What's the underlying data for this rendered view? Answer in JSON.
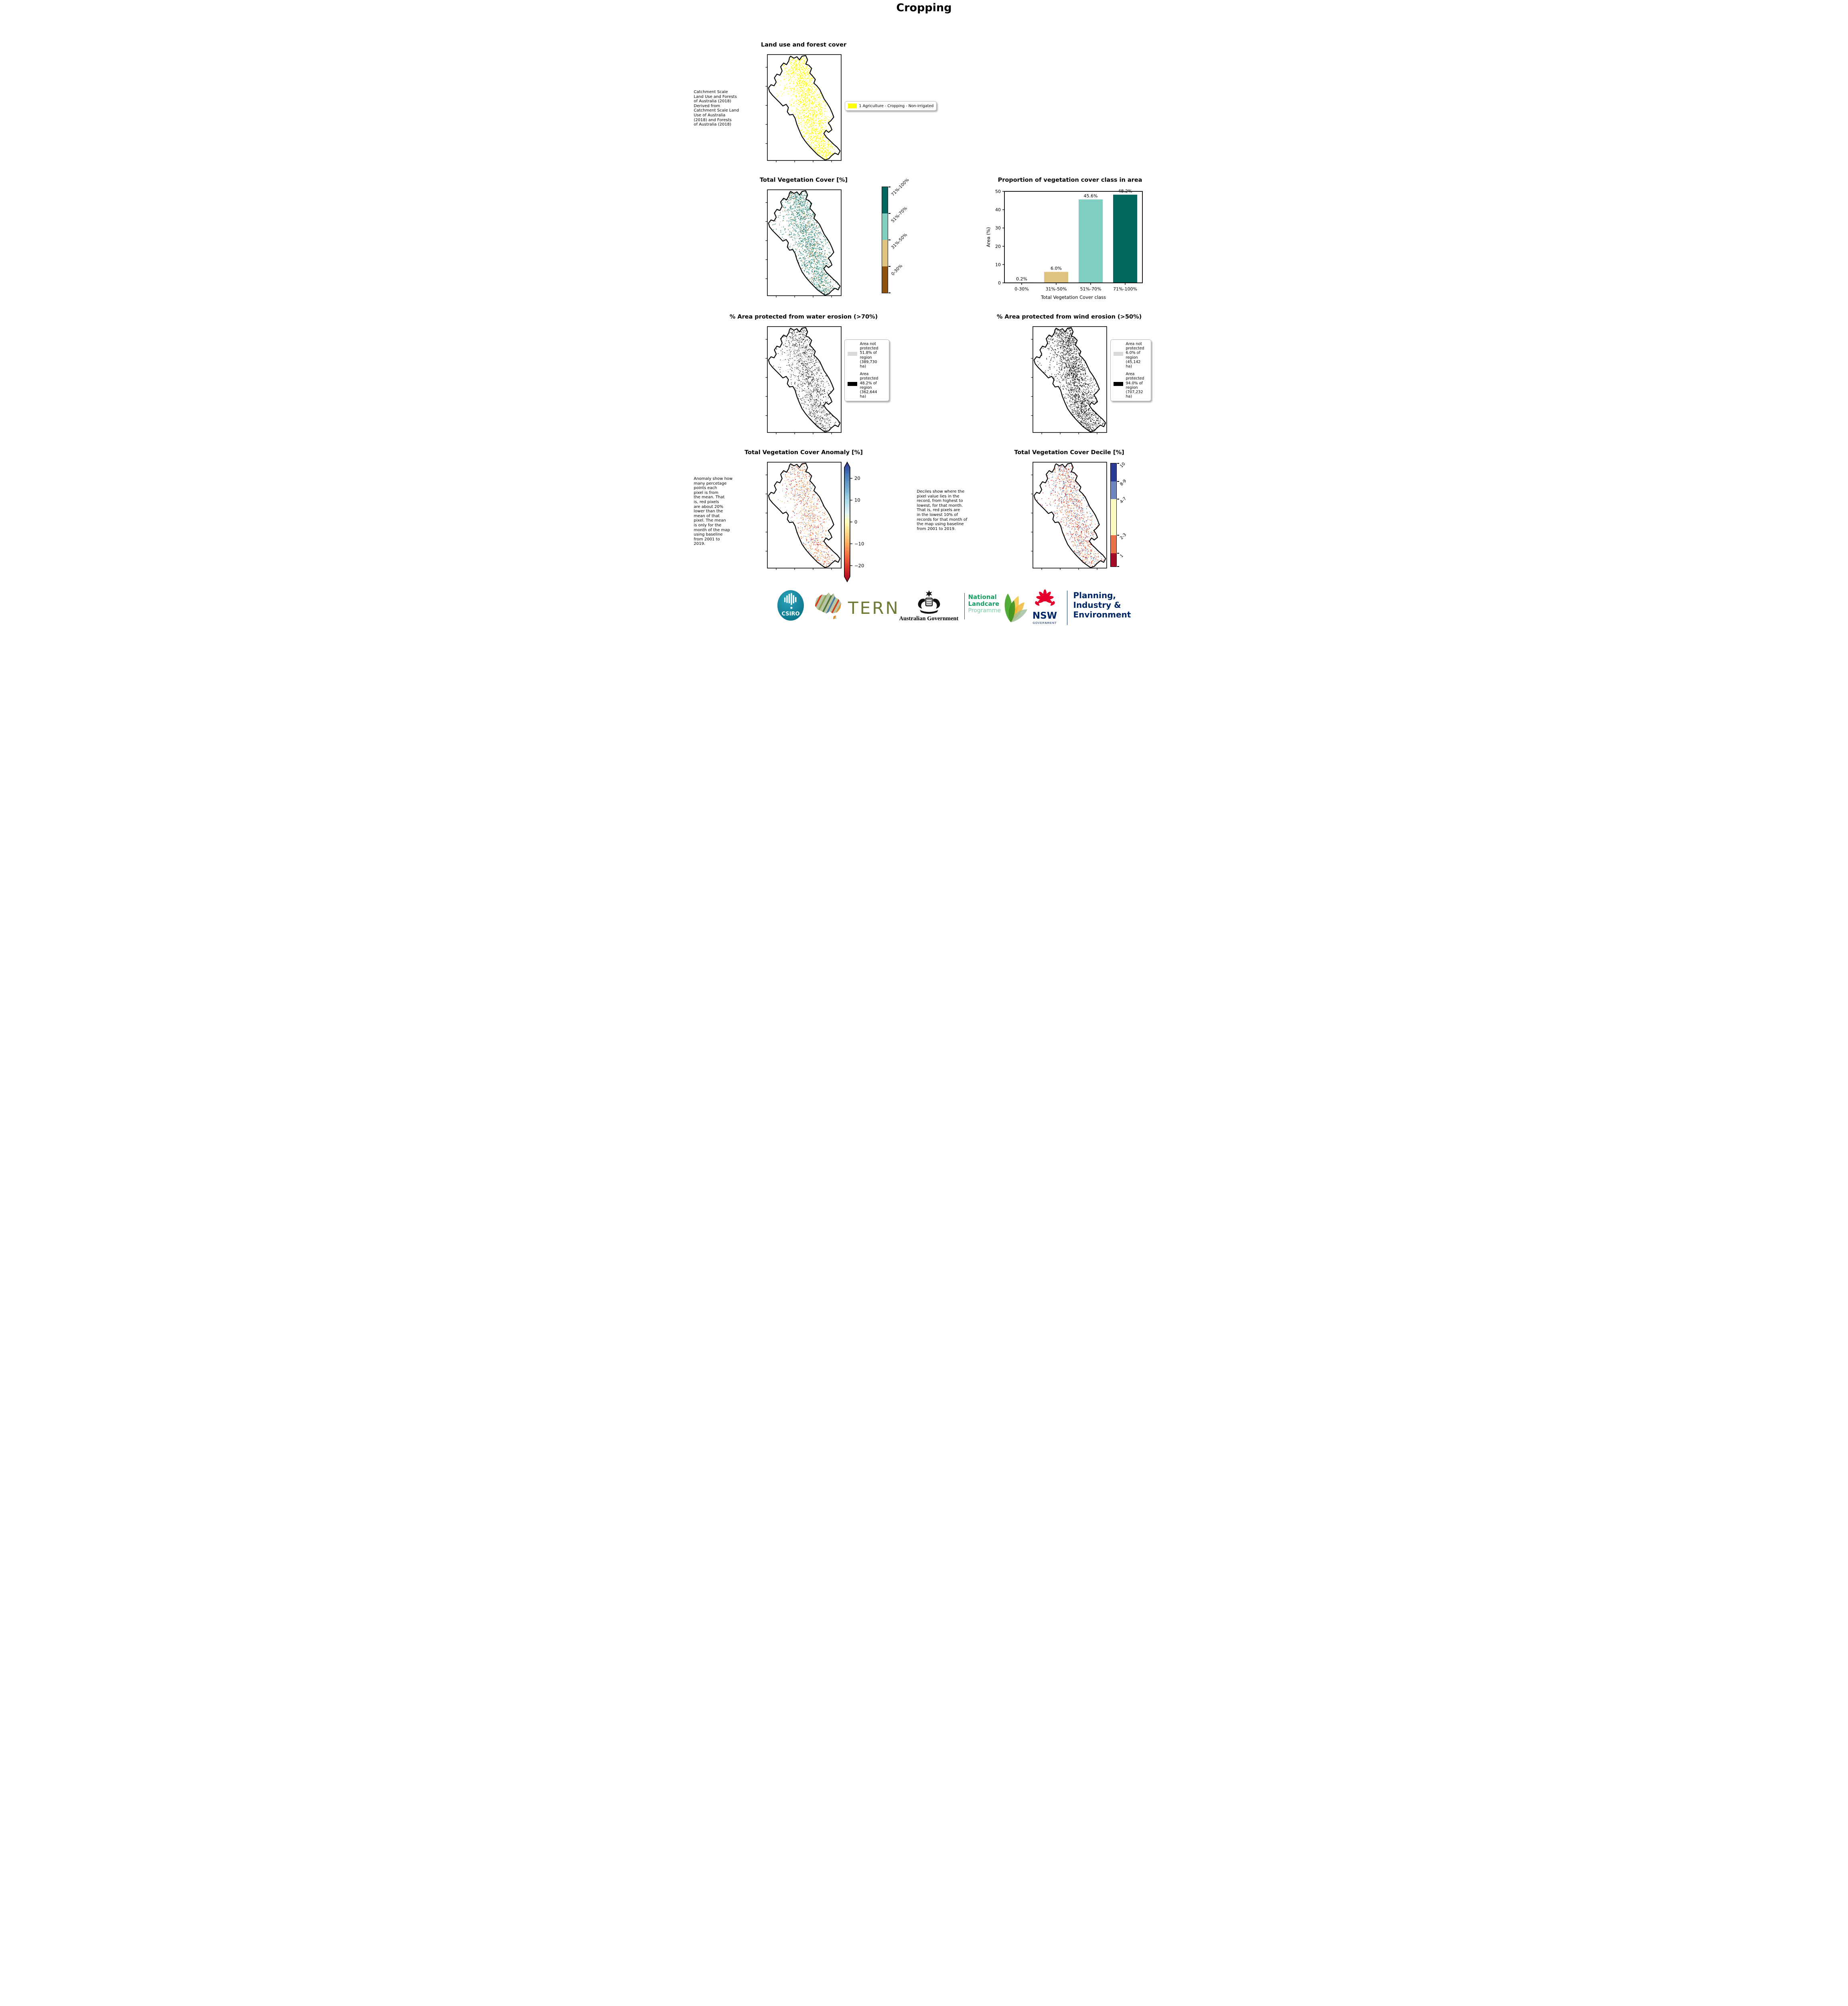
{
  "page_title": "Cropping",
  "landuse": {
    "title": "Land use and forest cover",
    "note": " Catchment Scale\nLand Use and Forests\nof Australia (2018)\nDerived from\nCatchment Scale Land\nUse of Australia\n(2018) and Forests\nof Australia (2018)",
    "legend_label": "1 Agriculture - Cropping - Non-irrigated",
    "legend_color": "#ffff00"
  },
  "tvc": {
    "title": "Total Vegetation Cover [%]",
    "colorbar": [
      {
        "label": "71%-100%",
        "color": "#01665e"
      },
      {
        "label": "51%-70%",
        "color": "#80cdc1"
      },
      {
        "label": "31%-50%",
        "color": "#dfc27d"
      },
      {
        "label": "0-30%",
        "color": "#8c510a"
      }
    ]
  },
  "chart_data": {
    "type": "bar",
    "title": "Proportion of vegetation cover class in area",
    "categories": [
      "0-30%",
      "31%-50%",
      "51%-70%",
      "71%-100%"
    ],
    "values": [
      0.2,
      6.0,
      45.6,
      48.2
    ],
    "value_labels": [
      "0.2%",
      "6.0%",
      "45.6%",
      "48.2%"
    ],
    "bar_colors": [
      "#8c510a",
      "#dfc27d",
      "#80cdc1",
      "#01665e"
    ],
    "xlabel": "Total Vegetation Cover class",
    "ylabel": "Area (%)",
    "ylim": [
      0,
      50
    ],
    "yticks": [
      0,
      10,
      20,
      30,
      40,
      50
    ],
    "legend_position": "none",
    "grid": false
  },
  "water_erosion": {
    "title": "% Area protected from water erosion (>70%)",
    "legend": [
      {
        "swatch": "#d9d9d9",
        "text": "Area not\nprotected\n51.8% of\nregion\n(389,730\nha)"
      },
      {
        "swatch": "#000000",
        "text": "Area\nprotected\n48.2% of\nregion\n(362,644\nha)"
      }
    ]
  },
  "wind_erosion": {
    "title": "% Area protected from wind erosion (>50%)",
    "legend": [
      {
        "swatch": "#d9d9d9",
        "text": "Area not\nprotected\n6.0% of\nregion\n(45,142\nha)"
      },
      {
        "swatch": "#000000",
        "text": "Area\nprotected\n94.0% of\nregion\n(707,232\nha)"
      }
    ]
  },
  "anomaly": {
    "title": "Total Vegetation Cover Anomaly [%]",
    "note": "Anomaly show how\nmany percetage\npoints each\npixel is from\nthe mean. That\nis, red pixels\nare about 20%\nlower than the\nmean of that\npixel. The mean\nis only for the\nmonth of the map\nusing baseline\nfrom 2001 to\n2019.",
    "ticks": [
      {
        "label": "20",
        "value": 20
      },
      {
        "label": "10",
        "value": 10
      },
      {
        "label": "0",
        "value": 0
      },
      {
        "label": "−10",
        "value": -10
      },
      {
        "label": "−20",
        "value": -20
      }
    ],
    "range": [
      -25,
      25
    ]
  },
  "decile": {
    "title": "Total Vegetation Cover Decile [%]",
    "note": "Deciles show where the\npixel value lies in the\nrecord, from highest to\nlowest, for that month.\nThat is, red pixels are\nin the lowest 10% of\nrecords for that month of\nthe map using baseline\nfrom 2001 to 2019.",
    "colorbar": [
      {
        "label": "10",
        "color": "#2c3a97"
      },
      {
        "label": "8-9",
        "color": "#7084bd"
      },
      {
        "label": "4-7",
        "color": "#fbfbc0"
      },
      {
        "label": "2-3",
        "color": "#e8714a"
      },
      {
        "label": "1",
        "color": "#a30b26"
      }
    ]
  },
  "footer": {
    "csiro": "CSIRO",
    "tern": "TERN",
    "ausgov": "Australian Government",
    "landcare_lines": [
      "National",
      "Landcare",
      "Programme"
    ],
    "nsw": "NSW",
    "nsw_sub": "GOVERNMENT",
    "dept_lines": [
      "Planning,",
      "Industry &",
      "Environment"
    ]
  }
}
